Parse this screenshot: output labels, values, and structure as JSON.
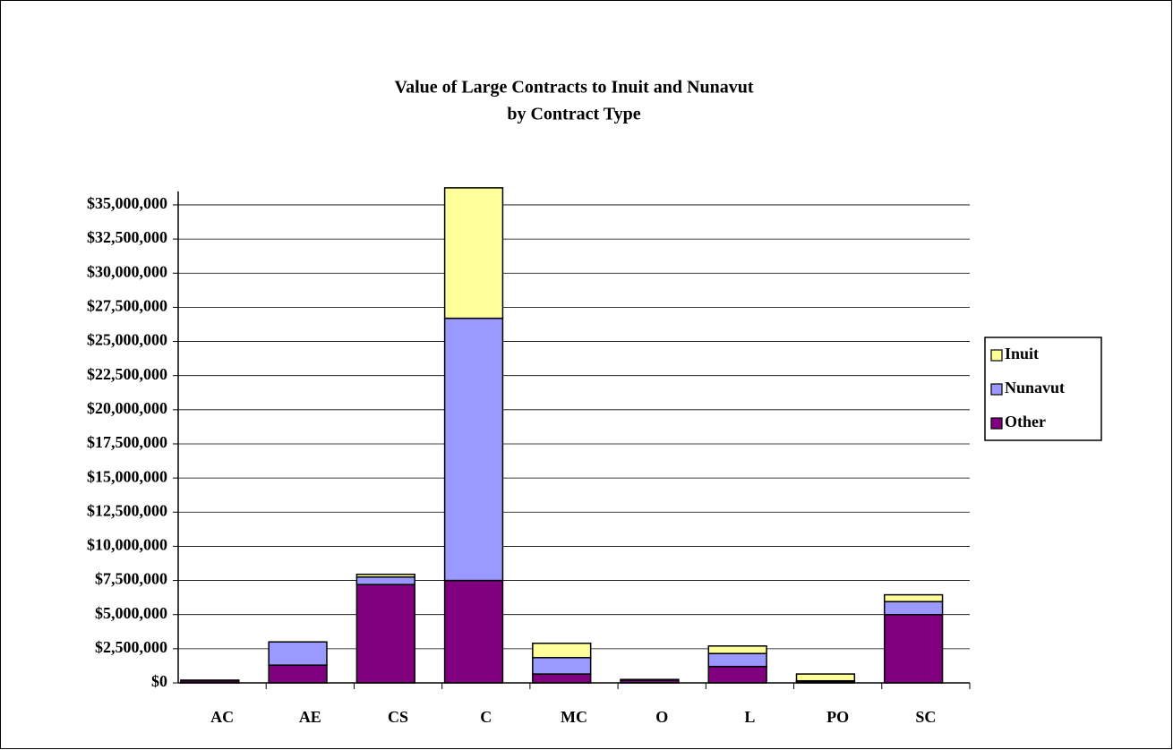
{
  "chart_data": {
    "type": "stacked_bar",
    "title": "Value of Large Contracts to Inuit and Nunavut",
    "subtitle": "by Contract Type",
    "categories": [
      "AC",
      "AE",
      "CS",
      "C",
      "MC",
      "O",
      "L",
      "PO",
      "SC"
    ],
    "series": [
      {
        "name": "Other",
        "color": "#800080",
        "values": [
          150000,
          1300000,
          7200000,
          7500000,
          650000,
          200000,
          1200000,
          100000,
          5000000
        ]
      },
      {
        "name": "Nunavut",
        "color": "#9999ff",
        "values": [
          30000,
          1700000,
          550000,
          19200000,
          1200000,
          50000,
          950000,
          50000,
          950000
        ]
      },
      {
        "name": "Inuit",
        "color": "#ffff99",
        "values": [
          20000,
          0,
          200000,
          9550000,
          1050000,
          0,
          550000,
          500000,
          500000
        ]
      }
    ],
    "ylim": [
      0,
      36000000
    ],
    "yticks": [
      {
        "value": 0,
        "label": "$0"
      },
      {
        "value": 2500000,
        "label": "$2,500,000"
      },
      {
        "value": 5000000,
        "label": "$5,000,000"
      },
      {
        "value": 7500000,
        "label": "$7,500,000"
      },
      {
        "value": 10000000,
        "label": "$10,000,000"
      },
      {
        "value": 12500000,
        "label": "$12,500,000"
      },
      {
        "value": 15000000,
        "label": "$15,000,000"
      },
      {
        "value": 17500000,
        "label": "$17,500,000"
      },
      {
        "value": 20000000,
        "label": "$20,000,000"
      },
      {
        "value": 22500000,
        "label": "$22,500,000"
      },
      {
        "value": 25000000,
        "label": "$25,000,000"
      },
      {
        "value": 27500000,
        "label": "$27,500,000"
      },
      {
        "value": 30000000,
        "label": "$30,000,000"
      },
      {
        "value": 32500000,
        "label": "$32,500,000"
      },
      {
        "value": 35000000,
        "label": "$35,000,000"
      }
    ],
    "grid": true,
    "legend": "right"
  }
}
